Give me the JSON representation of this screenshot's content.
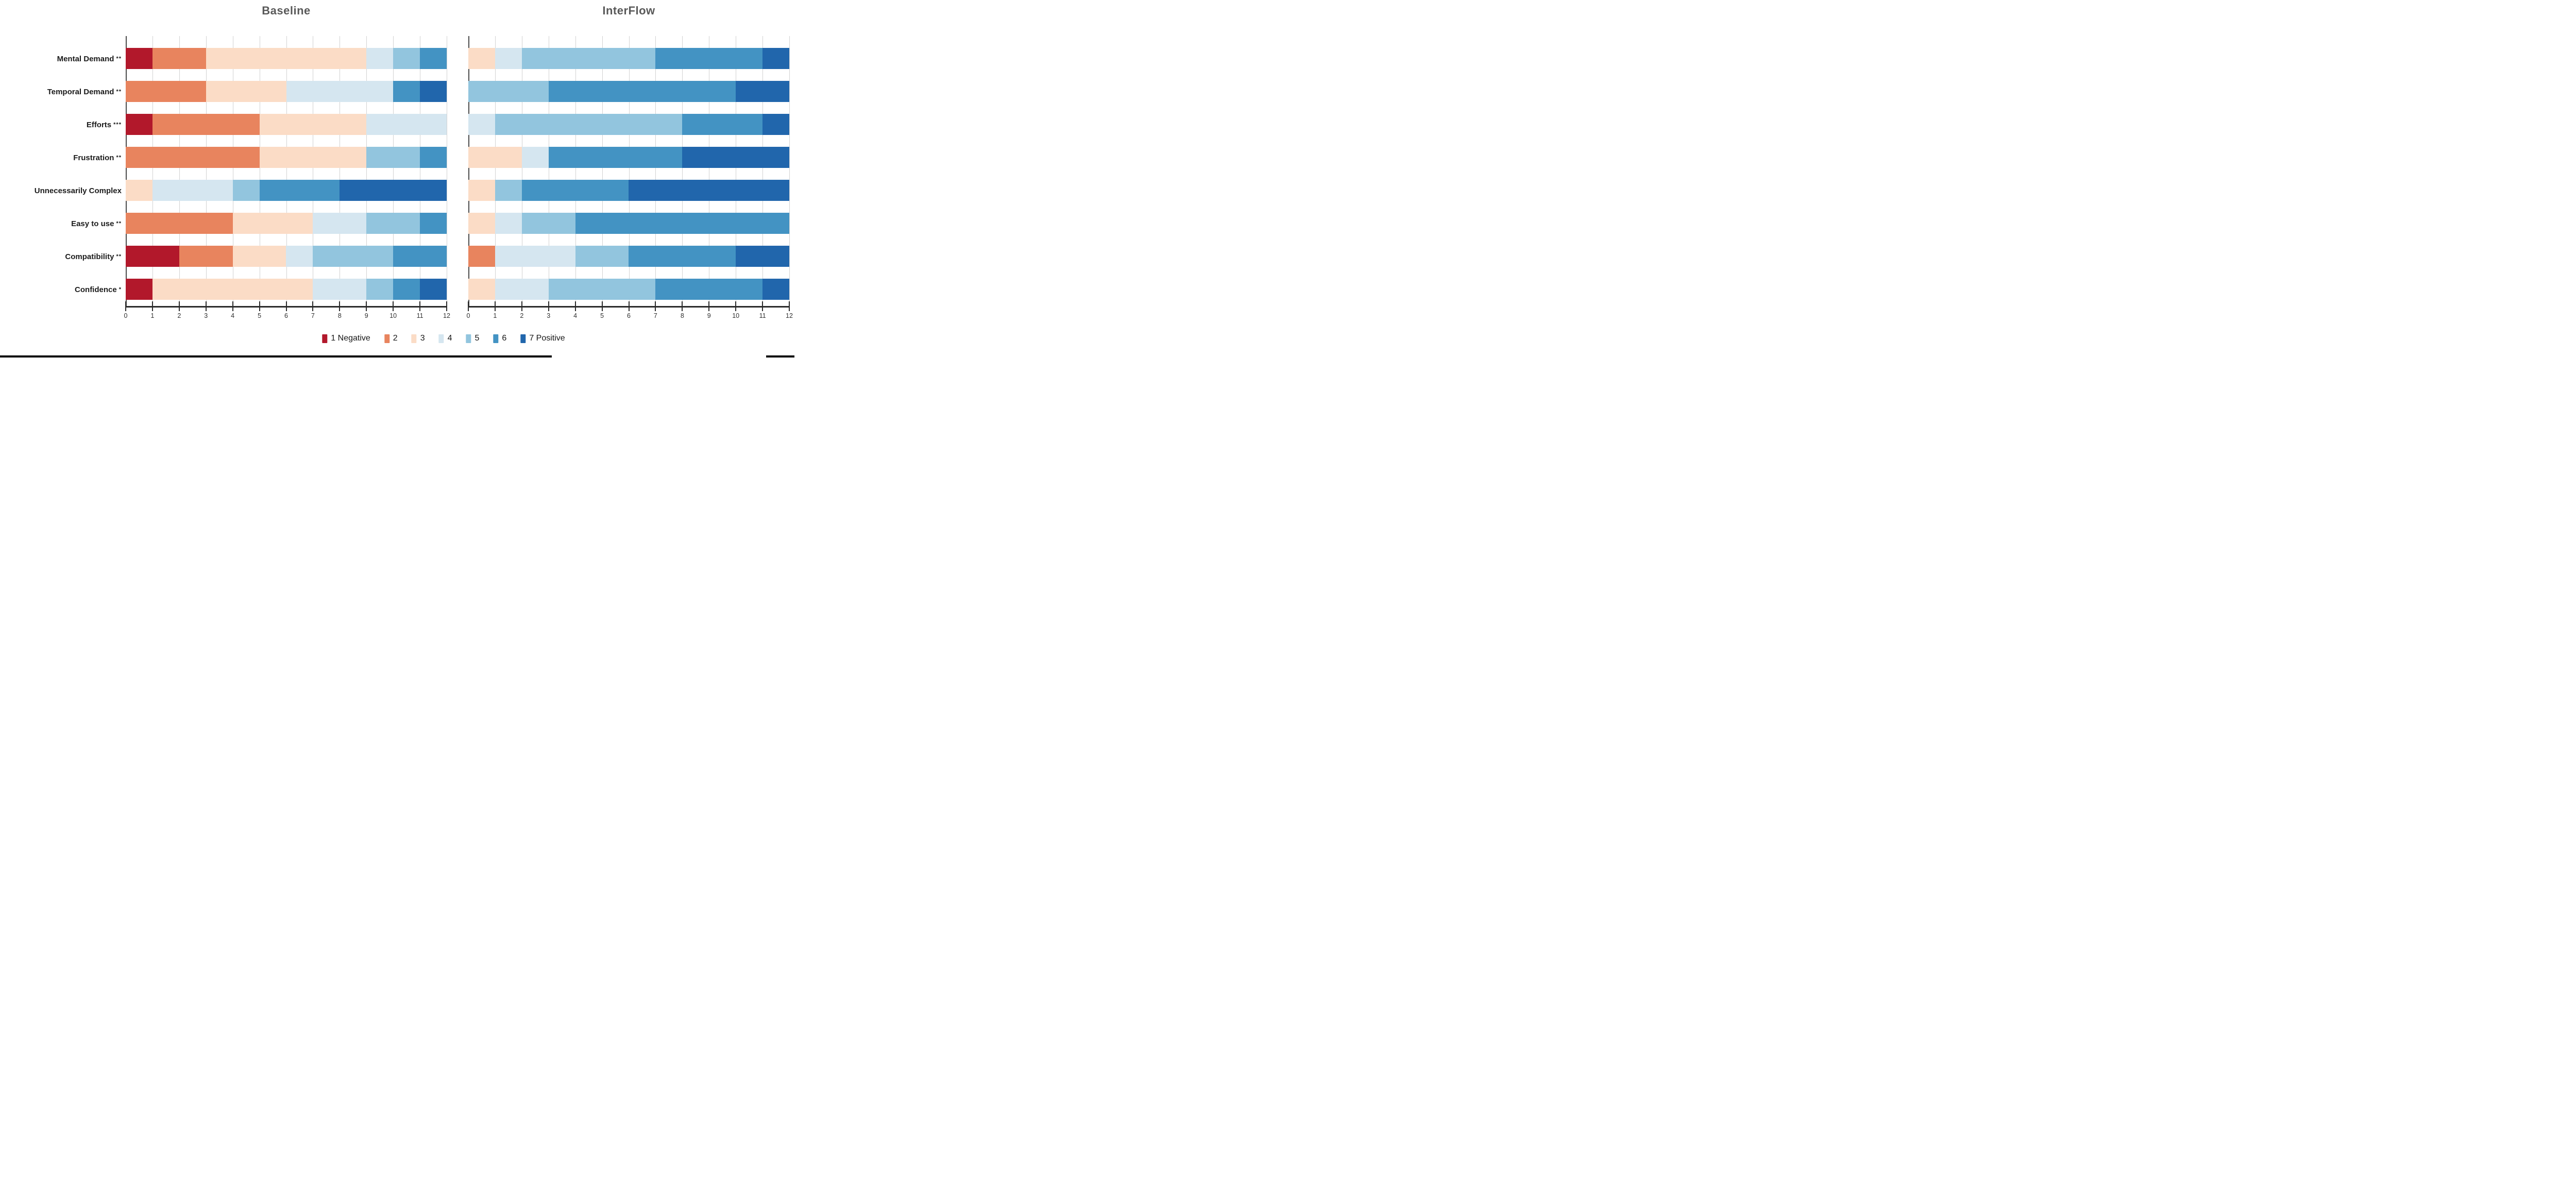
{
  "figure": {
    "titles": {
      "left": "Baseline",
      "right": "InterFlow"
    },
    "categories": [
      {
        "label": "Mental Demand",
        "stars": "**"
      },
      {
        "label": "Temporal Demand",
        "stars": "**"
      },
      {
        "label": "Efforts",
        "stars": "***"
      },
      {
        "label": "Frustration",
        "stars": "**"
      },
      {
        "label": "Unnecessarily Complex",
        "stars": ""
      },
      {
        "label": "Easy to use",
        "stars": "**"
      },
      {
        "label": "Compatibility",
        "stars": "**"
      },
      {
        "label": "Confidence",
        "stars": "*"
      }
    ]
  },
  "legend": {
    "items": [
      {
        "label": "1 Negative",
        "color": "#b2182b"
      },
      {
        "label": "2",
        "color": "#e8845e"
      },
      {
        "label": "3",
        "color": "#fbdcc6"
      },
      {
        "label": "4",
        "color": "#d5e6f0"
      },
      {
        "label": "5",
        "color": "#92c5de"
      },
      {
        "label": "6",
        "color": "#4393c3"
      },
      {
        "label": "7 Positive",
        "color": "#2166ac"
      }
    ]
  },
  "axis": {
    "xmin": 0,
    "xmax": 12,
    "ticks": [
      0,
      1,
      2,
      3,
      4,
      5,
      6,
      7,
      8,
      9,
      10,
      11,
      12
    ]
  },
  "chart_data": [
    {
      "type": "bar",
      "stacked": true,
      "orientation": "horizontal",
      "title": "Baseline",
      "xlabel": "",
      "xlim": [
        0,
        12
      ],
      "grid": true,
      "legend_position": "bottom",
      "categories": [
        "Mental Demand **",
        "Temporal Demand **",
        "Efforts ***",
        "Frustration **",
        "Unnecessarily Complex",
        "Easy to use **",
        "Compatibility **",
        "Confidence *"
      ],
      "series": [
        {
          "name": "1 Negative",
          "values": [
            1,
            0,
            1,
            0,
            0,
            0,
            2,
            1
          ]
        },
        {
          "name": "2",
          "values": [
            2,
            3,
            4,
            5,
            0,
            4,
            2,
            0
          ]
        },
        {
          "name": "3",
          "values": [
            6,
            3,
            4,
            4,
            1,
            3,
            2,
            6
          ]
        },
        {
          "name": "4",
          "values": [
            1,
            4,
            3,
            0,
            3,
            2,
            1,
            2
          ]
        },
        {
          "name": "5",
          "values": [
            1,
            0,
            0,
            2,
            1,
            2,
            3,
            1
          ]
        },
        {
          "name": "6",
          "values": [
            1,
            1,
            0,
            1,
            3,
            1,
            2,
            1
          ]
        },
        {
          "name": "7 Positive",
          "values": [
            0,
            1,
            0,
            0,
            4,
            0,
            0,
            1
          ]
        }
      ]
    },
    {
      "type": "bar",
      "stacked": true,
      "orientation": "horizontal",
      "title": "InterFlow",
      "xlabel": "",
      "xlim": [
        0,
        12
      ],
      "grid": true,
      "legend_position": "bottom",
      "categories": [
        "Mental Demand **",
        "Temporal Demand **",
        "Efforts ***",
        "Frustration **",
        "Unnecessarily Complex",
        "Easy to use **",
        "Compatibility **",
        "Confidence *"
      ],
      "series": [
        {
          "name": "1 Negative",
          "values": [
            0,
            0,
            0,
            0,
            0,
            0,
            0,
            0
          ]
        },
        {
          "name": "2",
          "values": [
            0,
            0,
            0,
            0,
            0,
            0,
            1,
            0
          ]
        },
        {
          "name": "3",
          "values": [
            1,
            0,
            0,
            2,
            1,
            1,
            0,
            1
          ]
        },
        {
          "name": "4",
          "values": [
            1,
            0,
            1,
            1,
            0,
            1,
            3,
            2
          ]
        },
        {
          "name": "5",
          "values": [
            5,
            3,
            7,
            0,
            1,
            2,
            2,
            4
          ]
        },
        {
          "name": "6",
          "values": [
            4,
            7,
            3,
            5,
            4,
            8,
            4,
            4
          ]
        },
        {
          "name": "7 Positive",
          "values": [
            1,
            2,
            1,
            4,
            6,
            0,
            2,
            1
          ]
        }
      ]
    }
  ]
}
